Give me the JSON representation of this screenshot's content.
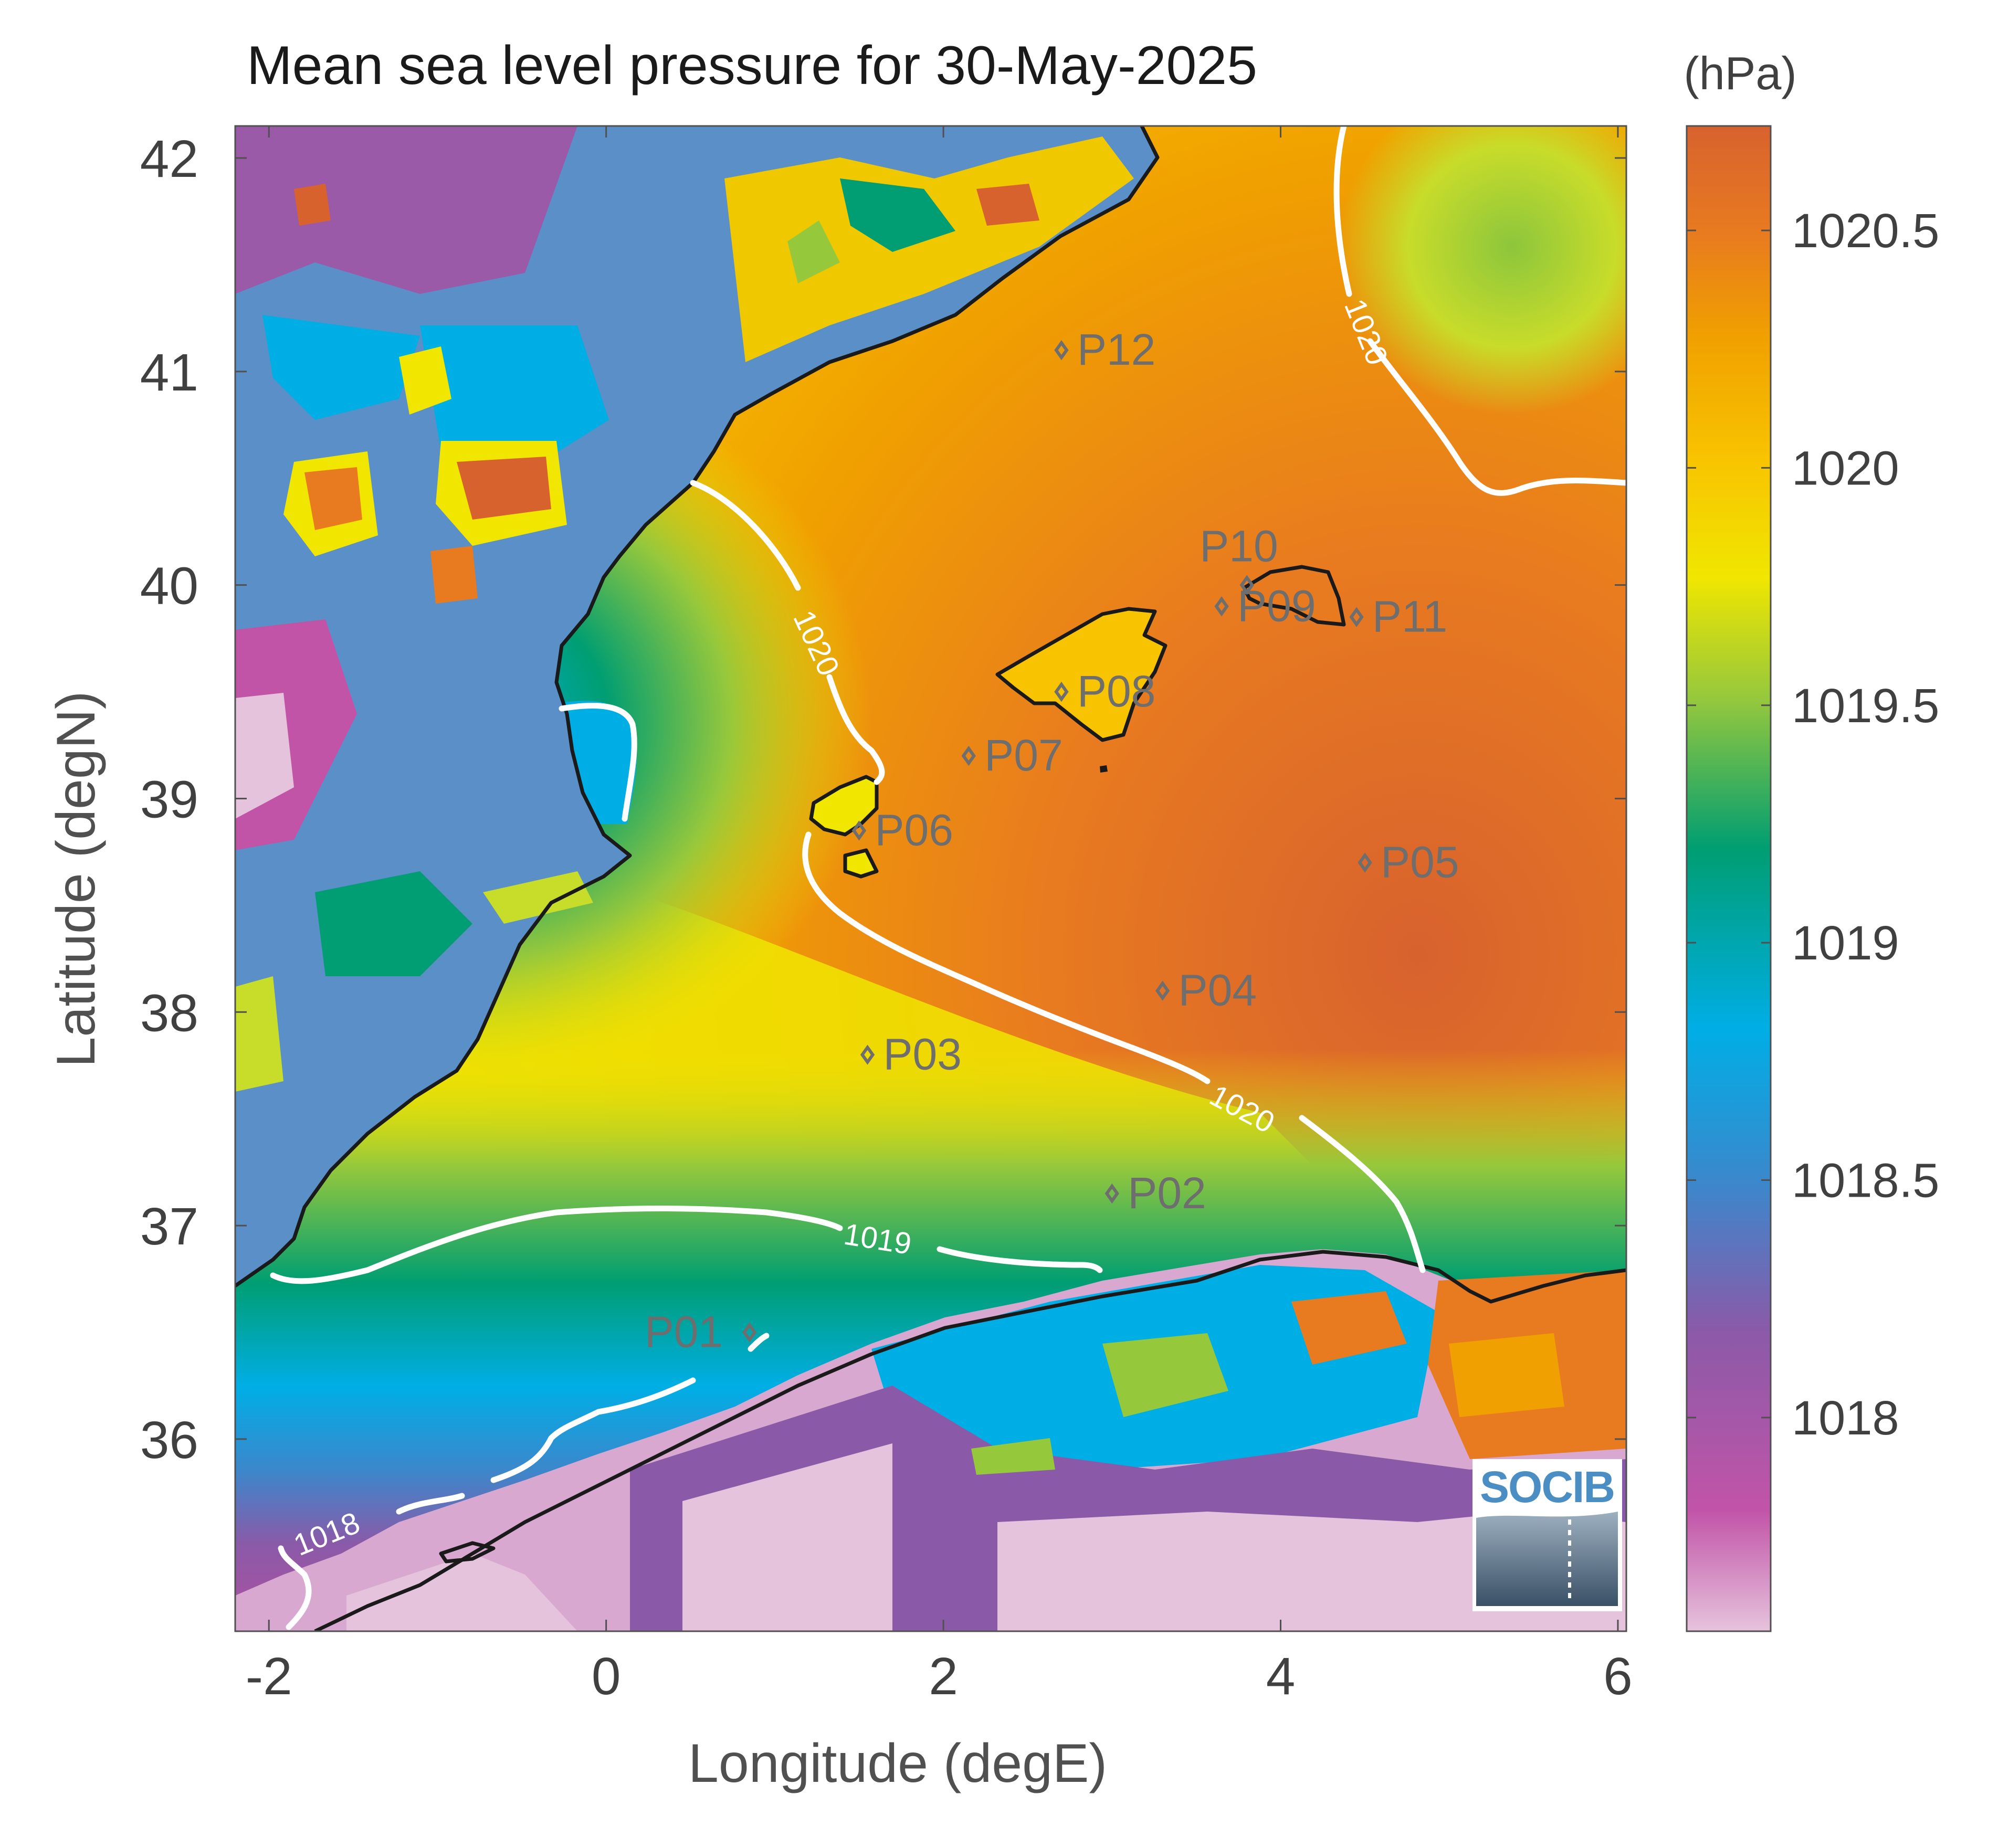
{
  "title": "Mean sea level pressure for 30-May-2025",
  "unit_label": "(hPa)",
  "xlabel": "Longitude (degE)",
  "ylabel": "Latitude (degN)",
  "logo_text": "SOCIB",
  "colors": {
    "axis": "#505050",
    "text": "#404040",
    "point": "#6e6e6e",
    "coast": "#1a1a1a",
    "contour": "#ffffff",
    "scale": [
      "#e6c3dc",
      "#c254a8",
      "#8a5aa8",
      "#3a88cc",
      "#00aee6",
      "#009e72",
      "#96c83c",
      "#f0e600",
      "#f8c300",
      "#f0a000",
      "#e87a20",
      "#d8622e"
    ]
  },
  "chart_data": {
    "type": "heatmap",
    "title": "Mean sea level pressure for 30-May-2025",
    "xlabel": "Longitude (degE)",
    "ylabel": "Latitude (degN)",
    "xlim": [
      -2.2,
      6.05
    ],
    "ylim": [
      35.1,
      42.15
    ],
    "xticks": [
      -2,
      0,
      2,
      4,
      6
    ],
    "xtick_labels": [
      "-2",
      "0",
      "2",
      "4",
      "6"
    ],
    "yticks": [
      36,
      37,
      38,
      39,
      40,
      41,
      42
    ],
    "ytick_labels": [
      "36",
      "37",
      "38",
      "39",
      "40",
      "41",
      "42"
    ],
    "colorbar": {
      "label": "(hPa)",
      "range": [
        1017.55,
        1020.72
      ],
      "ticks": [
        1018,
        1018.5,
        1019,
        1019.5,
        1020,
        1020.5
      ],
      "tick_labels": [
        "1018",
        "1018.5",
        "1019",
        "1019.5",
        "1020",
        "1020.5"
      ]
    },
    "contours": [
      {
        "level": 1020,
        "label": "1020"
      },
      {
        "level": 1019,
        "label": "1019"
      },
      {
        "level": 1018,
        "label": "1018"
      }
    ],
    "points": [
      {
        "name": "P01",
        "lon": 0.85,
        "lat": 36.5
      },
      {
        "name": "P02",
        "lon": 3.0,
        "lat": 37.15
      },
      {
        "name": "P03",
        "lon": 1.55,
        "lat": 37.8
      },
      {
        "name": "P04",
        "lon": 3.3,
        "lat": 38.1
      },
      {
        "name": "P05",
        "lon": 4.5,
        "lat": 38.7
      },
      {
        "name": "P06",
        "lon": 1.5,
        "lat": 38.85
      },
      {
        "name": "P07",
        "lon": 2.15,
        "lat": 39.2
      },
      {
        "name": "P08",
        "lon": 2.7,
        "lat": 39.5
      },
      {
        "name": "P09",
        "lon": 3.65,
        "lat": 39.9
      },
      {
        "name": "P10",
        "lon": 3.8,
        "lat": 40.0
      },
      {
        "name": "P11",
        "lon": 4.45,
        "lat": 39.85
      },
      {
        "name": "P12",
        "lon": 2.7,
        "lat": 41.1
      }
    ]
  }
}
